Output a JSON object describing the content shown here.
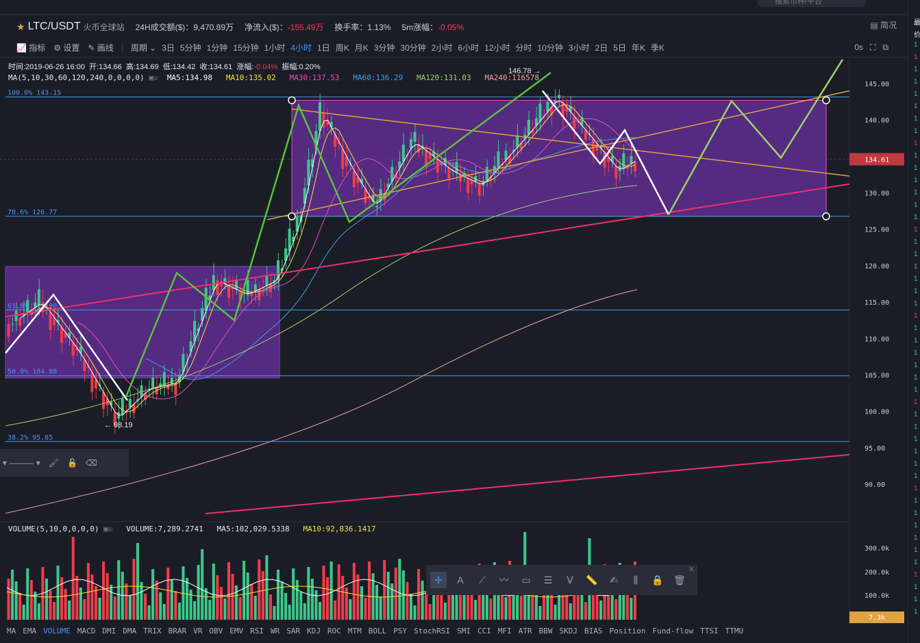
{
  "search": {
    "placeholder": "搜索币种/平台"
  },
  "ticker": {
    "pair": "LTC/USDT",
    "exchange": "火币全球站",
    "vol24h_label": "24H成交额($)：",
    "vol24h": "9,470.89万",
    "netflow_label": "净流入($)：",
    "netflow": "-155.49万",
    "turnover_label": "换手率：",
    "turnover": "1.13%",
    "change5m_label": "5m涨幅：",
    "change5m": "-0.05%",
    "settings_label": "简况"
  },
  "toolbar": {
    "indicator": "指标",
    "settings": "设置",
    "draw": "画线",
    "period": "周期",
    "periods": [
      "3日",
      "5分钟",
      "1分钟",
      "15分钟",
      "1小时",
      "4小时",
      "1日",
      "周K",
      "月K",
      "3分钟",
      "30分钟",
      "2小时",
      "6小时",
      "12小时",
      "分时",
      "10分钟",
      "3小时",
      "2日",
      "5日",
      "年K",
      "季K"
    ],
    "active_period": "4小时",
    "right_label": "0s"
  },
  "info": {
    "time": "时间:2019-06-26 16:00",
    "open": "开:134.66",
    "high": "高:134.69",
    "low": "低:134.42",
    "close": "收:134.61",
    "change_label": "涨幅:",
    "change": "-0.04%",
    "amp_label": "振幅:",
    "amp": "0.20%"
  },
  "ma": {
    "params": "MA(5,10,30,60,120,240,0,0,0,0)",
    "ma5": "MA5:134.98",
    "ma10": "MA10:135.02",
    "ma30": "MA30:137.53",
    "ma60": "MA60:136.29",
    "ma120": "MA120:131.03",
    "ma240": "MA240:116578",
    "colors": {
      "ma5": "#ffffff",
      "ma10": "#f5e342",
      "ma30": "#e54fbd",
      "ma60": "#3ea0e8",
      "ma120": "#9ed26a",
      "ma240": "#f0a0a0"
    }
  },
  "volume": {
    "params": "VOLUME(5,10,0,0,0,0)",
    "vol": "VOLUME:7,289.2741",
    "ma5": "MA5:102,029.5338",
    "ma10": "MA10:92,836.1417",
    "axis": [
      "300.0k",
      "200.0k",
      "100.0k"
    ],
    "last_tag": "7.3k"
  },
  "axis": {
    "ticks": [
      "145.00",
      "140.00",
      "135.00",
      "130.00",
      "125.00",
      "120.00",
      "115.00",
      "110.00",
      "105.00",
      "100.00",
      "95.00",
      "90.00"
    ],
    "last_price": "134.61"
  },
  "fib": [
    "100.0% 143.15",
    "78.6% 126.77",
    "61.8% 113.90",
    "50.0% 104.88",
    "38.2% 95.85"
  ],
  "annotations": {
    "low_mark": "← 98.19",
    "high_mark": "146.78 →"
  },
  "indicators": [
    "MA",
    "EMA",
    "VOLUME",
    "MACD",
    "DMI",
    "DMA",
    "TRIX",
    "BRAR",
    "VR",
    "OBV",
    "EMV",
    "RSI",
    "WR",
    "SAR",
    "KDJ",
    "ROC",
    "MTM",
    "BOLL",
    "PSY",
    "StochRSI",
    "SMI",
    "CCI",
    "MFI",
    "ATR",
    "BBW",
    "SKDJ",
    "BIAS",
    "Position",
    "Fund-flow",
    "TTSI",
    "TTMU"
  ],
  "active_indicator": "VOLUME",
  "right_strip": [
    "最",
    "价",
    "1",
    "1",
    "1",
    "1",
    "1",
    "1",
    "1",
    "1",
    "1",
    "1",
    "1",
    "1",
    "1",
    "1",
    "1",
    "1",
    "1",
    "1",
    "1",
    "1",
    "1",
    "1",
    "1",
    "1",
    "1",
    "1",
    "1",
    "1",
    "1",
    "1",
    "1",
    "1",
    "1",
    "1",
    "1",
    "1",
    "1",
    "1",
    "1",
    "1",
    "1",
    "1",
    "1",
    "1",
    "1",
    "1",
    "1"
  ]
}
